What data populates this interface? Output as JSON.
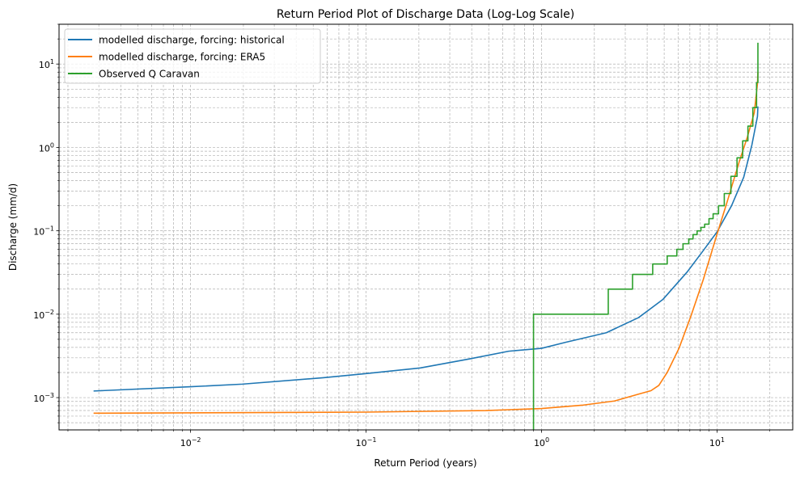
{
  "chart_data": {
    "type": "line",
    "title": "Return Period Plot of Discharge Data (Log-Log Scale)",
    "xlabel": "Return Period (years)",
    "ylabel": "Discharge (mm/d)",
    "xscale": "log",
    "yscale": "log",
    "xlim": [
      0.00178,
      27
    ],
    "ylim": [
      0.00041,
      30
    ],
    "grid": true,
    "legend_position": "top-left",
    "x_ticks": [
      {
        "base": "10",
        "exp": "−2",
        "value": 0.01
      },
      {
        "base": "10",
        "exp": "−1",
        "value": 0.1
      },
      {
        "base": "10",
        "exp": "0",
        "value": 1
      },
      {
        "base": "10",
        "exp": "1",
        "value": 10
      }
    ],
    "y_ticks": [
      {
        "base": "10",
        "exp": "−3",
        "value": 0.001
      },
      {
        "base": "10",
        "exp": "−2",
        "value": 0.01
      },
      {
        "base": "10",
        "exp": "−1",
        "value": 0.1
      },
      {
        "base": "10",
        "exp": "0",
        "value": 1
      },
      {
        "base": "10",
        "exp": "1",
        "value": 10
      }
    ],
    "series": [
      {
        "name": "modelled discharge, forcing: historical",
        "color": "#1f77b4",
        "step": false,
        "x": [
          0.0028,
          0.01,
          0.0197,
          0.057,
          0.1,
          0.204,
          0.385,
          0.65,
          1,
          1.37,
          2.34,
          3.57,
          4.91,
          6.75,
          8.35,
          10,
          12.1,
          14.2,
          15.8,
          17,
          17.1
        ],
        "y": [
          0.0012,
          0.00135,
          0.00145,
          0.00173,
          0.00194,
          0.00227,
          0.0029,
          0.0036,
          0.0039,
          0.0046,
          0.006,
          0.0091,
          0.015,
          0.032,
          0.058,
          0.097,
          0.2,
          0.44,
          1.07,
          2.35,
          3.1
        ]
      },
      {
        "name": "modelled discharge, forcing: ERA5",
        "color": "#ff7f0e",
        "step": false,
        "x": [
          0.0028,
          0.1,
          0.48,
          1,
          1.7,
          2.6,
          3.57,
          4.2,
          4.66,
          5.2,
          6.07,
          7.1,
          8.35,
          10,
          11.4,
          13.4,
          14.9,
          16.3,
          17,
          17.1
        ],
        "y": [
          0.00065,
          0.00067,
          0.0007,
          0.00074,
          0.00081,
          0.00091,
          0.0011,
          0.00121,
          0.0014,
          0.002,
          0.0039,
          0.0095,
          0.026,
          0.091,
          0.22,
          0.68,
          1.34,
          2.6,
          5.8,
          8
        ]
      },
      {
        "name": "Observed Q Caravan",
        "color": "#2ca02c",
        "step": true,
        "x": [
          0.9,
          0.9,
          2.4,
          3.3,
          4.3,
          5.2,
          5.9,
          6.4,
          6.9,
          7.3,
          7.7,
          8.1,
          8.5,
          9.0,
          9.5,
          10.2,
          11,
          12,
          13,
          14,
          15,
          16,
          16.8,
          17.1
        ],
        "y": [
          0.0001,
          0.01,
          0.02,
          0.03,
          0.04,
          0.05,
          0.06,
          0.07,
          0.08,
          0.09,
          0.1,
          0.11,
          0.12,
          0.14,
          0.16,
          0.2,
          0.28,
          0.45,
          0.75,
          1.2,
          1.8,
          3.0,
          6,
          18
        ]
      }
    ]
  }
}
